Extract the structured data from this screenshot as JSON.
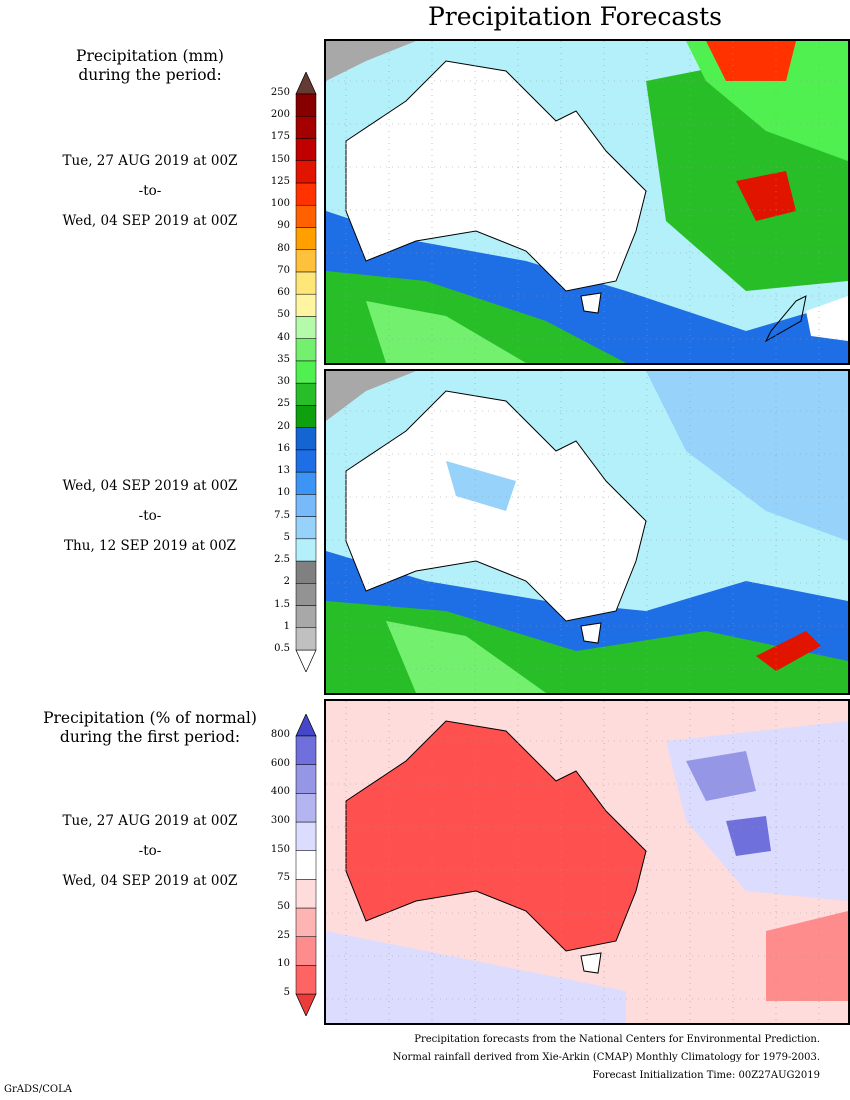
{
  "title": "Precipitation Forecasts",
  "legend_mm": {
    "heading": "Precipitation (mm)",
    "subheading": "during the period:",
    "levels": [
      "0.5",
      "1",
      "1.5",
      "2",
      "2.5",
      "5",
      "7.5",
      "10",
      "13",
      "16",
      "20",
      "25",
      "30",
      "35",
      "40",
      "50",
      "60",
      "70",
      "80",
      "90",
      "100",
      "125",
      "150",
      "175",
      "200",
      "250"
    ],
    "colors": [
      "#ffffff",
      "#c0c0c0",
      "#a8a8a8",
      "#939393",
      "#808080",
      "#b4f0fa",
      "#96d2fa",
      "#78b9fa",
      "#3c95f5",
      "#1e6ee6",
      "#1464d2",
      "#0fa00f",
      "#28be28",
      "#50f050",
      "#73f06e",
      "#b4faaa",
      "#fff5a0",
      "#ffe678",
      "#ffc03c",
      "#ffa000",
      "#ff6000",
      "#ff3200",
      "#e11400",
      "#c00000",
      "#a50000",
      "#870000",
      "#643b32"
    ]
  },
  "legend_pct": {
    "heading": "Precipitation (% of normal)",
    "subheading": "during the first period:",
    "levels": [
      "5",
      "10",
      "25",
      "50",
      "75",
      "150",
      "300",
      "400",
      "600",
      "800"
    ],
    "colors": [
      "#eb3c3c",
      "#ff6464",
      "#ff8c8c",
      "#ffb4b4",
      "#ffdcdc",
      "#ffffff",
      "#dcdcff",
      "#b4b4f0",
      "#9696e6",
      "#7070dc",
      "#4646c8"
    ]
  },
  "periods": [
    {
      "start": "Tue, 27 AUG 2019 at 00Z",
      "to": "-to-",
      "end": "Wed, 04 SEP 2019 at 00Z"
    },
    {
      "start": "Wed, 04 SEP 2019 at 00Z",
      "to": "-to-",
      "end": "Thu, 12 SEP 2019 at 00Z"
    },
    {
      "start": "Tue, 27 AUG 2019 at 00Z",
      "to": "-to-",
      "end": "Wed, 04 SEP 2019 at 00Z"
    }
  ],
  "footer": [
    "Precipitation forecasts from the National Centers for Environmental Prediction.",
    "Normal rainfall derived from Xie-Arkin (CMAP) Monthly Climatology for 1979-2003.",
    "Forecast Initialization Time: 00Z27AUG2019"
  ],
  "credit": "GrADS/COLA"
}
